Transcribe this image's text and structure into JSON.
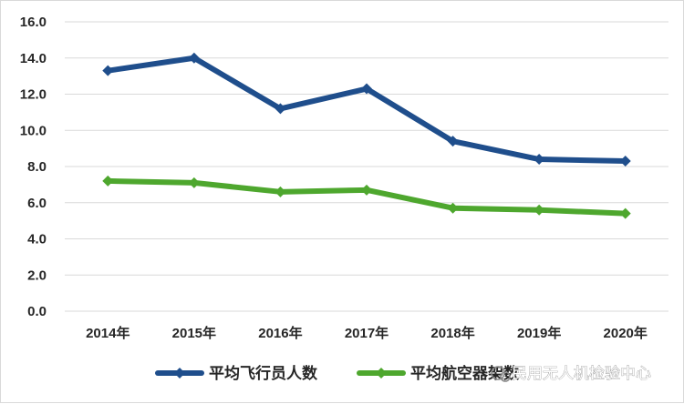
{
  "chart_data": {
    "type": "line",
    "categories": [
      "2014年",
      "2015年",
      "2016年",
      "2017年",
      "2018年",
      "2019年",
      "2020年"
    ],
    "series": [
      {
        "name": "平均飞行员人数",
        "color": "#1f4e8c",
        "values": [
          13.3,
          14.0,
          11.2,
          12.3,
          9.4,
          8.4,
          8.3
        ]
      },
      {
        "name": "平均航空器架数",
        "color": "#4ea72e",
        "values": [
          7.2,
          7.1,
          6.6,
          6.7,
          5.7,
          5.6,
          5.4
        ]
      }
    ],
    "yticks": [
      "0.0",
      "2.0",
      "4.0",
      "6.0",
      "8.0",
      "10.0",
      "12.0",
      "14.0",
      "16.0"
    ],
    "ylim": [
      0,
      16
    ],
    "grid": true,
    "legend_position": "bottom",
    "watermark": "民用无人机检验中心"
  }
}
